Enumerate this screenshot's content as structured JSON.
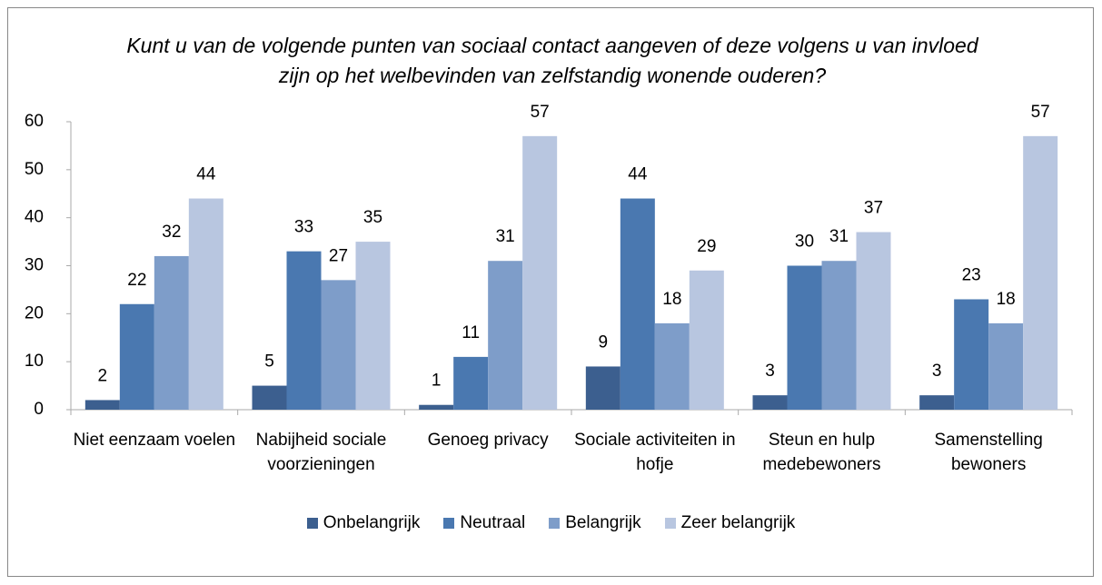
{
  "chart_data": {
    "type": "bar",
    "title": "Kunt u van de volgende punten van sociaal contact aangeven of deze volgens u van invloed zijn op het welbevinden van zelfstandig wonende ouderen?",
    "categories": [
      "Niet eenzaam voelen",
      "Nabijheid sociale voorzieningen",
      "Genoeg privacy",
      "Sociale activiteiten in hofje",
      "Steun en hulp medebewoners",
      "Samenstelling bewoners"
    ],
    "series": [
      {
        "name": "Onbelangrijk",
        "color": "#3c5f8f",
        "values": [
          2,
          5,
          1,
          9,
          3,
          3
        ]
      },
      {
        "name": "Neutraal",
        "color": "#4a78b0",
        "values": [
          22,
          33,
          11,
          44,
          30,
          23
        ]
      },
      {
        "name": "Belangrijk",
        "color": "#7e9dc9",
        "values": [
          32,
          27,
          31,
          18,
          31,
          18
        ]
      },
      {
        "name": "Zeer belangrijk",
        "color": "#b8c6e0",
        "values": [
          44,
          35,
          57,
          29,
          37,
          57
        ]
      }
    ],
    "ylim": [
      0,
      60
    ],
    "yticks": [
      0,
      10,
      20,
      30,
      40,
      50,
      60
    ],
    "grid": false,
    "legend": "bottom"
  }
}
